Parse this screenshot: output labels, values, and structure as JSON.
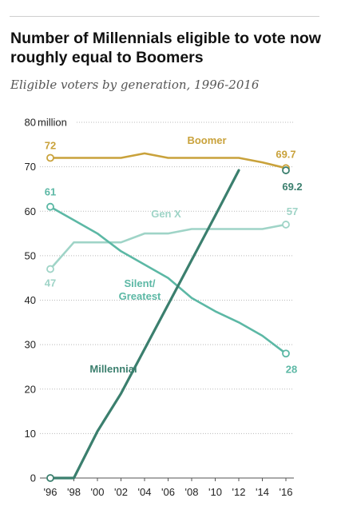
{
  "title": "Number of Millennials eligible to vote now roughly equal to Boomers",
  "subtitle": "Eligible voters by generation, 1996-2016",
  "chart_data": {
    "type": "line",
    "title": "Number of Millennials eligible to vote now roughly equal to Boomers",
    "subtitle": "Eligible voters by generation, 1996-2016",
    "x": [
      1996,
      1998,
      2000,
      2002,
      2004,
      2006,
      2008,
      2010,
      2012,
      2014,
      2016
    ],
    "x_tick_labels": [
      "'96",
      "'98",
      "'00",
      "'02",
      "'04",
      "'06",
      "'08",
      "'10",
      "'12",
      "'14",
      "'16"
    ],
    "y_ticks": [
      0,
      10,
      20,
      30,
      40,
      50,
      60,
      70,
      80
    ],
    "y_tick_labels": [
      "0",
      "10",
      "20",
      "30",
      "40",
      "50",
      "60",
      "70",
      "80"
    ],
    "y_unit_label": "million",
    "ylim": [
      0,
      80
    ],
    "grid": true,
    "series": [
      {
        "name": "Boomer",
        "color": "#c9a23b",
        "values": [
          72,
          72,
          72,
          72,
          73,
          72,
          72,
          72,
          72,
          71,
          69.7
        ],
        "start_label": "72",
        "end_label": "69.7"
      },
      {
        "name": "Gen X",
        "color": "#9fd4c7",
        "values": [
          47,
          53,
          53,
          53,
          55,
          55,
          56,
          56,
          56,
          56,
          57
        ],
        "start_label": "47",
        "end_label": "57"
      },
      {
        "name": "Silent/\nGreatest",
        "color": "#5cb8a5",
        "values": [
          61,
          58,
          55,
          51,
          48,
          45,
          40.5,
          37.5,
          35,
          32,
          28
        ],
        "start_label": "61",
        "end_label": "28"
      },
      {
        "name": "Millennial",
        "color": "#3b7f6e",
        "values": [
          0,
          0,
          10.5,
          19,
          29,
          39,
          49,
          59,
          69.2
        ],
        "x": [
          1996,
          1998,
          2000,
          2002,
          2004,
          2006,
          2008,
          2010,
          2012
        ],
        "start_label": "",
        "end_label": "69.2"
      }
    ]
  }
}
